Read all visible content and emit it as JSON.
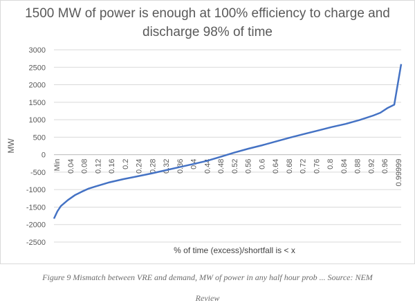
{
  "chart_data": {
    "type": "line",
    "title": "1500 MW of power is enough at 100% efficiency to charge and discharge 98% of time",
    "xlabel": "% of time (excess)/shortfall is < x",
    "ylabel": "MW",
    "ylim": [
      -2500,
      3000
    ],
    "yticks": [
      3000,
      2500,
      2000,
      1500,
      1000,
      500,
      0,
      -500,
      -1000,
      -1500,
      -2000,
      -2500
    ],
    "xtick_labels": [
      "Min",
      "0.04",
      "0.08",
      "0.12",
      "0.16",
      "0.2",
      "0.24",
      "0.28",
      "0.32",
      "0.36",
      "0.4",
      "0.44",
      "0.48",
      "0.52",
      "0.56",
      "0.6",
      "0.64",
      "0.68",
      "0.72",
      "0.76",
      "0.8",
      "0.84",
      "0.88",
      "0.92",
      "0.96",
      "0.99999"
    ],
    "grid": true,
    "legend": false,
    "line_color": "#4472c4",
    "series": [
      {
        "x": [
          0,
          0.01,
          0.02,
          0.04,
          0.06,
          0.08,
          0.1,
          0.12,
          0.14,
          0.16,
          0.2,
          0.24,
          0.28,
          0.32,
          0.36,
          0.4,
          0.44,
          0.48,
          0.52,
          0.56,
          0.6,
          0.64,
          0.68,
          0.72,
          0.76,
          0.8,
          0.84,
          0.88,
          0.92,
          0.94,
          0.96,
          0.98,
          0.99999
        ],
        "values": [
          -1830,
          -1620,
          -1470,
          -1300,
          -1160,
          -1060,
          -970,
          -910,
          -850,
          -790,
          -700,
          -620,
          -540,
          -450,
          -360,
          -270,
          -180,
          -60,
          60,
          170,
          270,
          380,
          490,
          590,
          690,
          790,
          880,
          990,
          1120,
          1200,
          1330,
          1430,
          2590
        ]
      }
    ]
  },
  "caption": {
    "line1": "Figure 9 Mismatch between VRE and demand, MW of power in any half hour prob",
    "line1_rest": "Source: NEM",
    "line2": "Review"
  }
}
